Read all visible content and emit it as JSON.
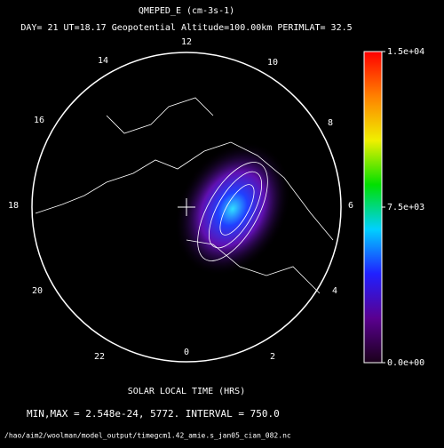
{
  "chart_data": {
    "type": "polar-contour",
    "title": "QMEPED_E (cm-3s-1)",
    "subtitle": "DAY= 21 UT=18.17 Geopotential Altitude=100.00km PERIMLAT= 32.5",
    "categories": [
      "0",
      "2",
      "4",
      "6",
      "8",
      "10",
      "12",
      "14",
      "16",
      "18",
      "20",
      "22"
    ],
    "xlabel": "SOLAR LOCAL TIME (HRS)",
    "stats": "MIN,MAX =  2.548e-24,     5772. INTERVAL =       750.0",
    "file": "/hao/aim2/woolman/model_output/timegcm1.42_amie.s_jan05_cian_082.nc",
    "colorbar": {
      "ylim": [
        0,
        15000
      ],
      "yticks": [
        {
          "value": 0,
          "label": "0.0e+00"
        },
        {
          "value": 7500,
          "label": "7.5e+03"
        },
        {
          "value": 15000,
          "label": "1.5e+04"
        }
      ],
      "colors": [
        "#1a001a",
        "#5a0090",
        "#2020ff",
        "#00d0ff",
        "#00e000",
        "#f0f000",
        "#ff8000",
        "#ff0000"
      ]
    }
  }
}
